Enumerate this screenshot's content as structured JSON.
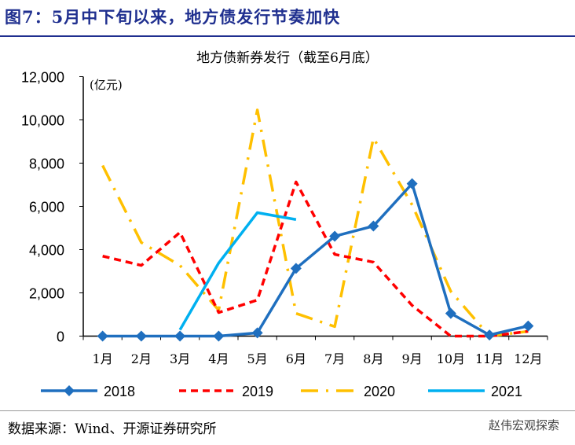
{
  "figure_title": "图7：5月中下旬以来，地方债发行节奏加快",
  "source": "数据来源：Wind、开源证券研究所",
  "watermark": "赵伟宏观探索",
  "chart_data": {
    "type": "line",
    "title": "地方债新券发行（截至6月底）",
    "ylabel": "(亿元)",
    "xlabel": "",
    "ylim": [
      0,
      12000
    ],
    "yticks": [
      0,
      2000,
      4000,
      6000,
      8000,
      10000,
      12000
    ],
    "ytick_labels": [
      "0",
      "2,000",
      "4,000",
      "6,000",
      "8,000",
      "10,000",
      "12,000"
    ],
    "categories": [
      "1月",
      "2月",
      "3月",
      "4月",
      "5月",
      "6月",
      "7月",
      "8月",
      "9月",
      "10月",
      "11月",
      "12月"
    ],
    "legend_position": "bottom",
    "grid": false,
    "series": [
      {
        "name": "2018",
        "color": "#1f6fbf",
        "style": "solid-marker",
        "values": [
          0,
          0,
          0,
          0,
          150,
          3130,
          4620,
          5090,
          7050,
          1050,
          50,
          470
        ]
      },
      {
        "name": "2019",
        "color": "#ff0000",
        "style": "dashed",
        "values": [
          3700,
          3270,
          4800,
          1090,
          1670,
          7130,
          3780,
          3420,
          1420,
          0,
          0,
          220
        ]
      },
      {
        "name": "2020",
        "color": "#ffc000",
        "style": "dashdot",
        "values": [
          7890,
          4330,
          3270,
          1200,
          10460,
          1050,
          440,
          9160,
          6070,
          2070,
          0,
          220
        ]
      },
      {
        "name": "2021",
        "color": "#00b0f0",
        "style": "solid",
        "values": [
          null,
          null,
          290,
          3380,
          5710,
          5390,
          null,
          null,
          null,
          null,
          null,
          null
        ]
      }
    ]
  }
}
